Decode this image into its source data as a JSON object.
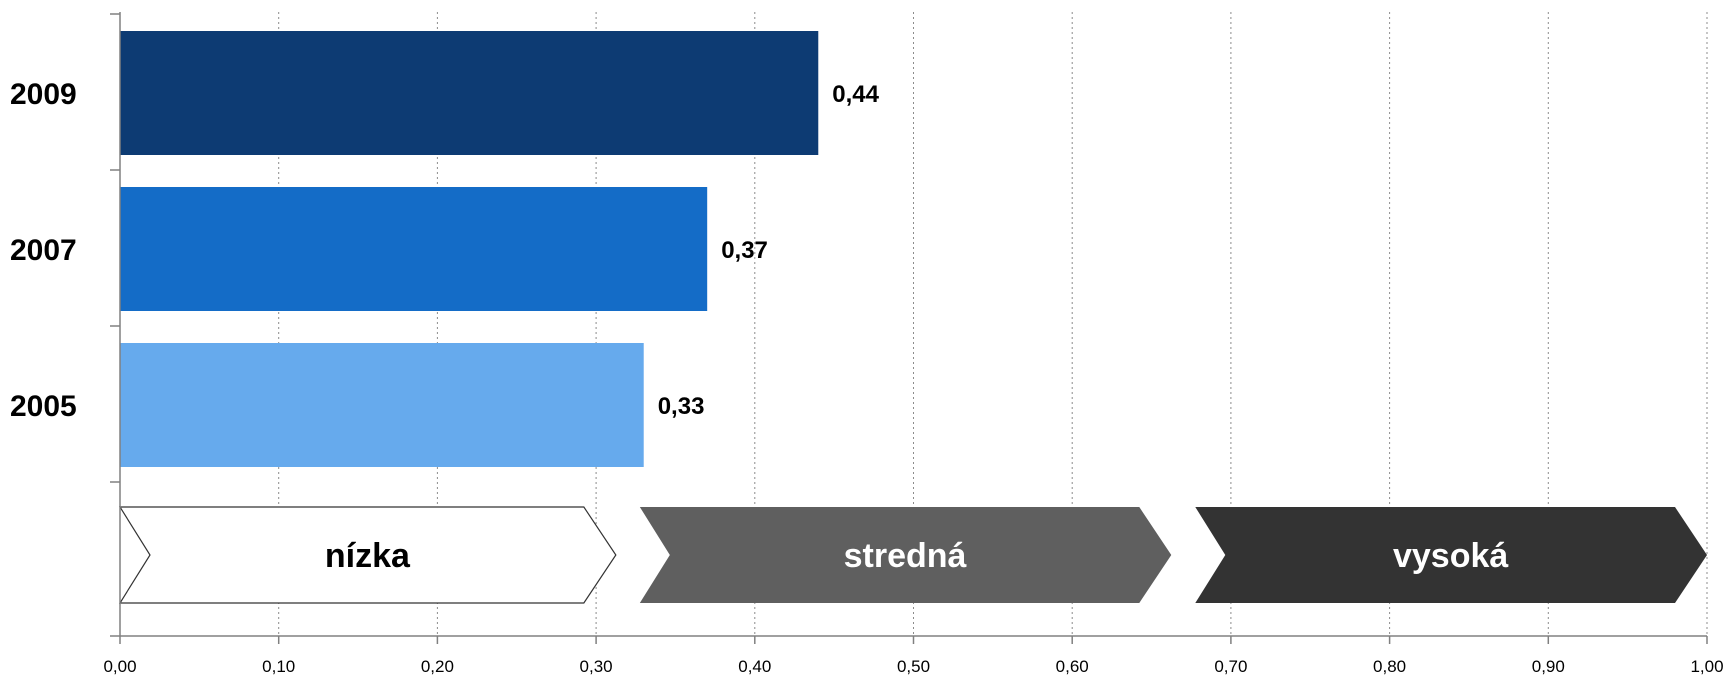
{
  "chart_data": {
    "type": "bar",
    "orientation": "horizontal",
    "categories": [
      "2009",
      "2007",
      "2005"
    ],
    "values": [
      0.44,
      0.37,
      0.33
    ],
    "value_labels": [
      "0,44",
      "0,37",
      "0,33"
    ],
    "colors": [
      "#0d3b73",
      "#146cc7",
      "#66aaed"
    ],
    "xlim": [
      0,
      1
    ],
    "x_ticks": [
      0,
      0.1,
      0.2,
      0.3,
      0.4,
      0.5,
      0.6,
      0.7,
      0.8,
      0.9,
      1.0
    ],
    "x_tick_labels": [
      "0,00",
      "0,10",
      "0,20",
      "0,30",
      "0,40",
      "0,50",
      "0,60",
      "0,70",
      "0,80",
      "0,90",
      "1,00"
    ],
    "grid": "vertical dotted",
    "title": "",
    "xlabel": "",
    "ylabel": "",
    "bands": [
      {
        "label": "nízka",
        "from": 0.0,
        "to": 0.32,
        "fill": "#ffffff",
        "text_color": "#000000"
      },
      {
        "label": "stredná",
        "from": 0.32,
        "to": 0.67,
        "fill": "#5f5f5f",
        "text_color": "#ffffff"
      },
      {
        "label": "vysoká",
        "from": 0.67,
        "to": 1.0,
        "fill": "#333333",
        "text_color": "#ffffff"
      }
    ]
  }
}
